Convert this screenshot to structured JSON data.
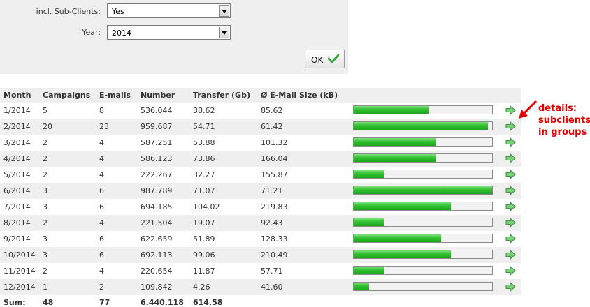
{
  "filters": {
    "subclients_label": "incl. Sub-Clients:",
    "subclients_value": "Yes",
    "year_label": "Year:",
    "year_value": "2014",
    "ok_label": "OK"
  },
  "table": {
    "headers": [
      "Month",
      "Campaigns",
      "E-mails",
      "Number",
      "Transfer (Gb)",
      "Ø E-Mail Size (kB)"
    ],
    "rows": [
      {
        "month": "1/2014",
        "campaigns": "5",
        "emails": "8",
        "number": "536.044",
        "transfer": "38.62",
        "size": "85.62",
        "fill": 0.54
      },
      {
        "month": "2/2014",
        "campaigns": "20",
        "emails": "23",
        "number": "959.687",
        "transfer": "54.71",
        "size": "61.42",
        "fill": 0.97
      },
      {
        "month": "3/2014",
        "campaigns": "2",
        "emails": "4",
        "number": "587.251",
        "transfer": "53.88",
        "size": "101.32",
        "fill": 0.59
      },
      {
        "month": "4/2014",
        "campaigns": "2",
        "emails": "4",
        "number": "586.123",
        "transfer": "73.86",
        "size": "166.04",
        "fill": 0.59
      },
      {
        "month": "5/2014",
        "campaigns": "2",
        "emails": "4",
        "number": "222.267",
        "transfer": "32.27",
        "size": "155.87",
        "fill": 0.22
      },
      {
        "month": "6/2014",
        "campaigns": "3",
        "emails": "6",
        "number": "987.789",
        "transfer": "71.07",
        "size": "71.21",
        "fill": 1.0
      },
      {
        "month": "7/2014",
        "campaigns": "3",
        "emails": "6",
        "number": "694.185",
        "transfer": "104.02",
        "size": "219.83",
        "fill": 0.7
      },
      {
        "month": "8/2014",
        "campaigns": "2",
        "emails": "4",
        "number": "221.504",
        "transfer": "19.07",
        "size": "92.43",
        "fill": 0.22
      },
      {
        "month": "9/2014",
        "campaigns": "3",
        "emails": "6",
        "number": "622.659",
        "transfer": "51.89",
        "size": "128.33",
        "fill": 0.63
      },
      {
        "month": "10/2014",
        "campaigns": "3",
        "emails": "6",
        "number": "692.113",
        "transfer": "99.06",
        "size": "210.49",
        "fill": 0.7
      },
      {
        "month": "11/2014",
        "campaigns": "2",
        "emails": "4",
        "number": "220.654",
        "transfer": "11.87",
        "size": "57.71",
        "fill": 0.22
      },
      {
        "month": "12/2014",
        "campaigns": "1",
        "emails": "2",
        "number": "109.842",
        "transfer": "4.26",
        "size": "41.60",
        "fill": 0.11
      }
    ],
    "sum": {
      "label": "Sum:",
      "campaigns": "48",
      "emails": "77",
      "number": "6.440.118",
      "transfer": "614.58"
    }
  },
  "annotation": {
    "lines": [
      "details:",
      "subclients",
      "in groups"
    ],
    "color": "#e00000"
  },
  "icons": {
    "details": "arrow-right-icon",
    "ok": "checkmark-icon"
  }
}
